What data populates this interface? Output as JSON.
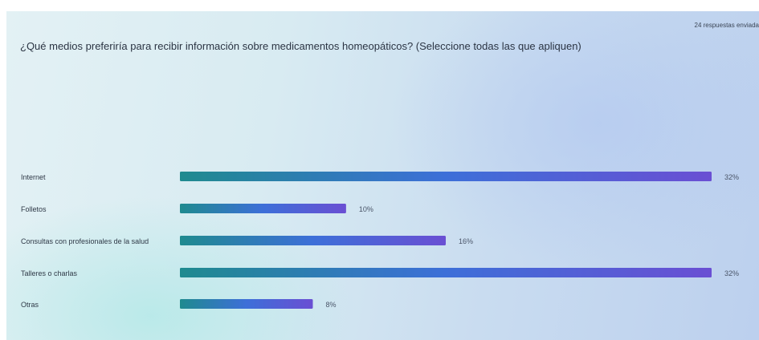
{
  "header": {
    "responses_label": "24 respuestas enviada",
    "question": "¿Qué medios preferiría para recibir información sobre medicamentos homeopáticos? (Seleccione todas las que apliquen)"
  },
  "chart_data": {
    "type": "bar",
    "orientation": "horizontal",
    "title": "¿Qué medios preferiría para recibir información sobre medicamentos homeopáticos? (Seleccione todas las que apliquen)",
    "categories": [
      "Internet",
      "Folletos",
      "Consultas con profesionales de la salud",
      "Talleres o charlas",
      "Otras"
    ],
    "values": [
      32,
      10,
      16,
      32,
      8
    ],
    "value_labels": [
      "32%",
      "10%",
      "16%",
      "32%",
      "8%"
    ],
    "unit": "%",
    "xlim": [
      0,
      32
    ],
    "grid": false,
    "legend": "none",
    "bar_gradient": [
      "#1f8a8f",
      "#3d6fd8",
      "#6a4fd3"
    ]
  }
}
